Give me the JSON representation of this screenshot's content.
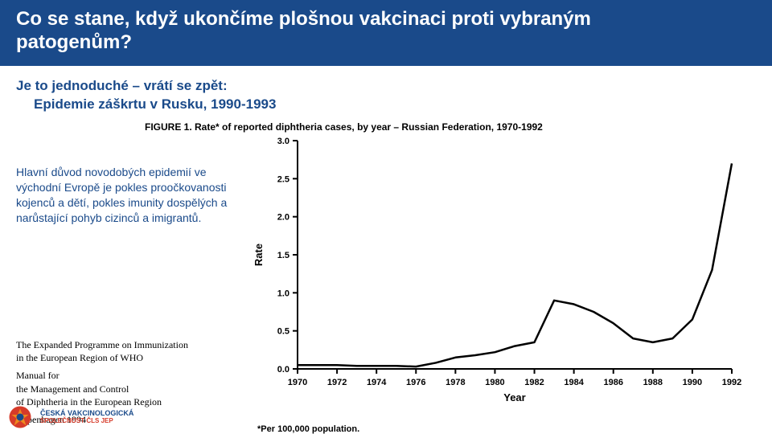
{
  "header": {
    "line1": "Co se stane, když ukončíme plošnou vakcinaci proti vybraným",
    "line2": "patogenům?"
  },
  "subhead": {
    "line1": "Je to jednoduché – vrátí se zpět:",
    "line2": "Epidemie záškrtu v Rusku, 1990-1993"
  },
  "figcaption": "FIGURE 1.  Rate* of reported diphtheria cases, by year – Russian Federation, 1970-1992",
  "leftcol": {
    "text": "Hlavní důvod novodobých epidemií ve východní Evropě je pokles proočkovanosti kojenců a dětí, pokles imunity dospělých a narůstající pohyb cizinců a imigrantů."
  },
  "reference": {
    "l1": "The Expanded Programme on Immunization",
    "l2": "in the European Region of WHO",
    "l3": "Manual for",
    "l4": "the Management and Control",
    "l5": "of Diphtheria in the European Region",
    "l6": "Copenhagen 1994"
  },
  "chart": {
    "type": "line",
    "xlabel": "Year",
    "ylabel": "Rate",
    "xlim": [
      1970,
      1992
    ],
    "ylim": [
      0.0,
      3.0
    ],
    "xticks": [
      1970,
      1972,
      1974,
      1976,
      1978,
      1980,
      1982,
      1984,
      1986,
      1988,
      1990,
      1992
    ],
    "yticks": [
      0.0,
      0.5,
      1.0,
      1.5,
      2.0,
      2.5,
      3.0
    ],
    "line_color": "#000000",
    "line_width": 2.5,
    "background_color": "#ffffff",
    "points": [
      [
        1970,
        0.05
      ],
      [
        1971,
        0.05
      ],
      [
        1972,
        0.05
      ],
      [
        1973,
        0.04
      ],
      [
        1974,
        0.04
      ],
      [
        1975,
        0.04
      ],
      [
        1976,
        0.03
      ],
      [
        1977,
        0.08
      ],
      [
        1978,
        0.15
      ],
      [
        1979,
        0.18
      ],
      [
        1980,
        0.22
      ],
      [
        1981,
        0.3
      ],
      [
        1982,
        0.35
      ],
      [
        1983,
        0.9
      ],
      [
        1984,
        0.85
      ],
      [
        1985,
        0.75
      ],
      [
        1986,
        0.6
      ],
      [
        1987,
        0.4
      ],
      [
        1988,
        0.35
      ],
      [
        1989,
        0.4
      ],
      [
        1990,
        0.65
      ],
      [
        1991,
        1.3
      ],
      [
        1992,
        2.7
      ]
    ]
  },
  "footnote": "*Per 100,000 population.",
  "logo": {
    "name": "ČESKÁ VAKCINOLOGICKÁ",
    "sub": "SPOLEČNOST ČLS JEP"
  },
  "colors": {
    "header_bg": "#1a4a8a",
    "accent_blue": "#1a4a8a",
    "accent_orange": "#ef8a1d",
    "accent_red": "#d63b2a"
  }
}
